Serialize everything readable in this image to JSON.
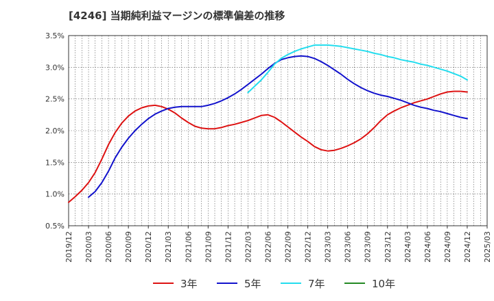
{
  "title": "[4246]  当期純利益マージンの標準偏差の推移",
  "chart_data": {
    "type": "line",
    "title": "[4246]  当期純利益マージンの標準偏差の推移",
    "xlabel": "",
    "ylabel": "",
    "ylim": [
      0.5,
      3.5
    ],
    "yticks": [
      "0.5%",
      "1.0%",
      "1.5%",
      "2.0%",
      "2.5%",
      "3.0%",
      "3.5%"
    ],
    "xticks": [
      "2019/12",
      "2020/03",
      "2020/06",
      "2020/09",
      "2020/12",
      "2021/03",
      "2021/06",
      "2021/09",
      "2021/12",
      "2022/03",
      "2022/06",
      "2022/09",
      "2022/12",
      "2023/03",
      "2023/06",
      "2023/09",
      "2023/12",
      "2024/03",
      "2024/06",
      "2024/09",
      "2024/12",
      "2025/03"
    ],
    "grid": true,
    "legend_position": "bottom",
    "series": [
      {
        "name": "3年",
        "color": "#dd1111",
        "points": [
          [
            "2019/12",
            0.87
          ],
          [
            "2020/01",
            0.96
          ],
          [
            "2020/02",
            1.06
          ],
          [
            "2020/03",
            1.18
          ],
          [
            "2020/04",
            1.34
          ],
          [
            "2020/05",
            1.55
          ],
          [
            "2020/06",
            1.78
          ],
          [
            "2020/07",
            1.97
          ],
          [
            "2020/08",
            2.12
          ],
          [
            "2020/09",
            2.23
          ],
          [
            "2020/10",
            2.31
          ],
          [
            "2020/11",
            2.36
          ],
          [
            "2020/12",
            2.39
          ],
          [
            "2021/01",
            2.4
          ],
          [
            "2021/02",
            2.38
          ],
          [
            "2021/03",
            2.34
          ],
          [
            "2021/04",
            2.28
          ],
          [
            "2021/05",
            2.2
          ],
          [
            "2021/06",
            2.13
          ],
          [
            "2021/07",
            2.07
          ],
          [
            "2021/08",
            2.04
          ],
          [
            "2021/09",
            2.03
          ],
          [
            "2021/10",
            2.03
          ],
          [
            "2021/11",
            2.05
          ],
          [
            "2021/12",
            2.08
          ],
          [
            "2022/01",
            2.1
          ],
          [
            "2022/02",
            2.13
          ],
          [
            "2022/03",
            2.16
          ],
          [
            "2022/04",
            2.2
          ],
          [
            "2022/05",
            2.24
          ],
          [
            "2022/06",
            2.25
          ],
          [
            "2022/07",
            2.21
          ],
          [
            "2022/08",
            2.14
          ],
          [
            "2022/09",
            2.06
          ],
          [
            "2022/10",
            1.98
          ],
          [
            "2022/11",
            1.9
          ],
          [
            "2022/12",
            1.83
          ],
          [
            "2023/01",
            1.75
          ],
          [
            "2023/02",
            1.7
          ],
          [
            "2023/03",
            1.68
          ],
          [
            "2023/04",
            1.69
          ],
          [
            "2023/05",
            1.72
          ],
          [
            "2023/06",
            1.76
          ],
          [
            "2023/07",
            1.81
          ],
          [
            "2023/08",
            1.87
          ],
          [
            "2023/09",
            1.95
          ],
          [
            "2023/10",
            2.05
          ],
          [
            "2023/11",
            2.16
          ],
          [
            "2023/12",
            2.25
          ],
          [
            "2024/01",
            2.31
          ],
          [
            "2024/02",
            2.36
          ],
          [
            "2024/03",
            2.4
          ],
          [
            "2024/04",
            2.44
          ],
          [
            "2024/05",
            2.47
          ],
          [
            "2024/06",
            2.5
          ],
          [
            "2024/07",
            2.54
          ],
          [
            "2024/08",
            2.58
          ],
          [
            "2024/09",
            2.61
          ],
          [
            "2024/10",
            2.62
          ],
          [
            "2024/11",
            2.62
          ],
          [
            "2024/12",
            2.61
          ]
        ]
      },
      {
        "name": "5年",
        "color": "#1111cc",
        "points": [
          [
            "2020/03",
            0.95
          ],
          [
            "2020/04",
            1.04
          ],
          [
            "2020/05",
            1.18
          ],
          [
            "2020/06",
            1.36
          ],
          [
            "2020/07",
            1.57
          ],
          [
            "2020/08",
            1.74
          ],
          [
            "2020/09",
            1.88
          ],
          [
            "2020/10",
            2.0
          ],
          [
            "2020/11",
            2.1
          ],
          [
            "2020/12",
            2.19
          ],
          [
            "2021/01",
            2.26
          ],
          [
            "2021/02",
            2.31
          ],
          [
            "2021/03",
            2.35
          ],
          [
            "2021/04",
            2.37
          ],
          [
            "2021/05",
            2.38
          ],
          [
            "2021/06",
            2.38
          ],
          [
            "2021/07",
            2.38
          ],
          [
            "2021/08",
            2.38
          ],
          [
            "2021/09",
            2.4
          ],
          [
            "2021/10",
            2.43
          ],
          [
            "2021/11",
            2.47
          ],
          [
            "2021/12",
            2.52
          ],
          [
            "2022/01",
            2.58
          ],
          [
            "2022/02",
            2.65
          ],
          [
            "2022/03",
            2.73
          ],
          [
            "2022/04",
            2.81
          ],
          [
            "2022/05",
            2.89
          ],
          [
            "2022/06",
            2.98
          ],
          [
            "2022/07",
            3.06
          ],
          [
            "2022/08",
            3.12
          ],
          [
            "2022/09",
            3.15
          ],
          [
            "2022/10",
            3.17
          ],
          [
            "2022/11",
            3.18
          ],
          [
            "2022/12",
            3.17
          ],
          [
            "2023/01",
            3.14
          ],
          [
            "2023/02",
            3.09
          ],
          [
            "2023/03",
            3.03
          ],
          [
            "2023/04",
            2.96
          ],
          [
            "2023/05",
            2.89
          ],
          [
            "2023/06",
            2.81
          ],
          [
            "2023/07",
            2.74
          ],
          [
            "2023/08",
            2.68
          ],
          [
            "2023/09",
            2.63
          ],
          [
            "2023/10",
            2.59
          ],
          [
            "2023/11",
            2.56
          ],
          [
            "2023/12",
            2.54
          ],
          [
            "2024/01",
            2.51
          ],
          [
            "2024/02",
            2.48
          ],
          [
            "2024/03",
            2.44
          ],
          [
            "2024/04",
            2.4
          ],
          [
            "2024/05",
            2.37
          ],
          [
            "2024/06",
            2.35
          ],
          [
            "2024/07",
            2.32
          ],
          [
            "2024/08",
            2.3
          ],
          [
            "2024/09",
            2.27
          ],
          [
            "2024/10",
            2.24
          ],
          [
            "2024/11",
            2.21
          ],
          [
            "2024/12",
            2.19
          ]
        ]
      },
      {
        "name": "7年",
        "color": "#22ddee",
        "points": [
          [
            "2022/03",
            2.6
          ],
          [
            "2022/04",
            2.7
          ],
          [
            "2022/05",
            2.8
          ],
          [
            "2022/06",
            2.92
          ],
          [
            "2022/07",
            3.05
          ],
          [
            "2022/08",
            3.14
          ],
          [
            "2022/09",
            3.2
          ],
          [
            "2022/10",
            3.25
          ],
          [
            "2022/11",
            3.29
          ],
          [
            "2022/12",
            3.32
          ],
          [
            "2023/01",
            3.35
          ],
          [
            "2023/02",
            3.35
          ],
          [
            "2023/03",
            3.35
          ],
          [
            "2023/04",
            3.34
          ],
          [
            "2023/05",
            3.33
          ],
          [
            "2023/06",
            3.31
          ],
          [
            "2023/07",
            3.29
          ],
          [
            "2023/08",
            3.27
          ],
          [
            "2023/09",
            3.25
          ],
          [
            "2023/10",
            3.22
          ],
          [
            "2023/11",
            3.2
          ],
          [
            "2023/12",
            3.17
          ],
          [
            "2024/01",
            3.15
          ],
          [
            "2024/02",
            3.12
          ],
          [
            "2024/03",
            3.1
          ],
          [
            "2024/04",
            3.08
          ],
          [
            "2024/05",
            3.05
          ],
          [
            "2024/06",
            3.03
          ],
          [
            "2024/07",
            3.0
          ],
          [
            "2024/08",
            2.97
          ],
          [
            "2024/09",
            2.94
          ],
          [
            "2024/10",
            2.9
          ],
          [
            "2024/11",
            2.86
          ],
          [
            "2024/12",
            2.8
          ]
        ]
      },
      {
        "name": "10年",
        "color": "#228822",
        "points": []
      }
    ]
  }
}
